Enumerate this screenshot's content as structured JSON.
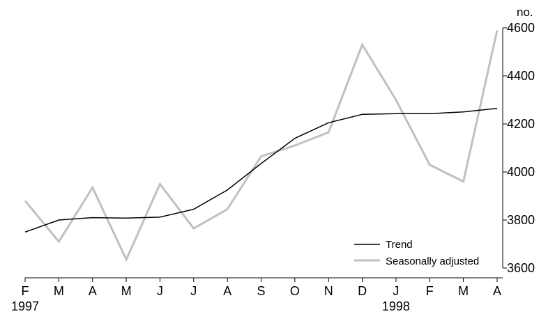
{
  "chart_data": {
    "type": "line",
    "title": "",
    "unit_label": "no.",
    "x": [
      "F",
      "M",
      "A",
      "M",
      "J",
      "J",
      "A",
      "S",
      "O",
      "N",
      "D",
      "J",
      "F",
      "M",
      "A"
    ],
    "year_labels": [
      {
        "label": "1997",
        "index": 0
      },
      {
        "label": "1998",
        "index": 11
      }
    ],
    "ylim": [
      3600,
      4600
    ],
    "yticks": [
      3600,
      3800,
      4000,
      4200,
      4400,
      4600
    ],
    "grid": false,
    "legend_position": "bottom-right",
    "series": [
      {
        "name": "Trend",
        "color": "#000000",
        "values": [
          3750,
          3800,
          3810,
          3808,
          3812,
          3845,
          3925,
          4035,
          4140,
          4205,
          4240,
          4243,
          4243,
          4250,
          4265
        ]
      },
      {
        "name": "Seasonally adjusted",
        "color": "#c0c0c0",
        "values": [
          3880,
          3710,
          3935,
          3635,
          3950,
          3765,
          3845,
          4065,
          4110,
          4165,
          4530,
          4300,
          4030,
          3960,
          4590
        ]
      }
    ]
  }
}
